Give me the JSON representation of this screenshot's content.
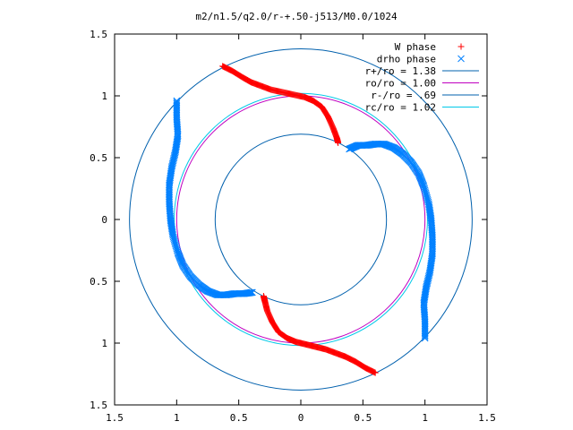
{
  "chart_data": {
    "type": "scatter",
    "title": "m2/n1.5/q2.0/r-+.50-j513/M0.0/1024",
    "xlabel": "",
    "ylabel": "",
    "xlim": [
      -1.5,
      1.5
    ],
    "ylim": [
      -1.5,
      1.5
    ],
    "x_tick_labels": [
      "1.5",
      "1",
      "0.5",
      "0",
      "0.5",
      "1",
      "1.5"
    ],
    "x_tick_values": [
      -1.5,
      -1.0,
      -0.5,
      0.0,
      0.5,
      1.0,
      1.5
    ],
    "y_tick_labels": [
      "1.5",
      "1",
      "0.5",
      "0",
      "0.5",
      "1",
      "1.5"
    ],
    "y_tick_values": [
      1.5,
      1.0,
      0.5,
      0.0,
      -0.5,
      -1.0,
      -1.5
    ],
    "grid": false,
    "legend_position": "top-right",
    "series": [
      {
        "name": "W phase",
        "marker": "+",
        "color": "#ff0000",
        "segments": [
          [
            [
              -0.63,
              1.24
            ],
            [
              -0.55,
              1.2
            ],
            [
              -0.47,
              1.15
            ],
            [
              -0.4,
              1.11
            ],
            [
              -0.32,
              1.08
            ],
            [
              -0.24,
              1.05
            ],
            [
              -0.15,
              1.03
            ],
            [
              -0.06,
              1.01
            ],
            [
              0.03,
              0.99
            ],
            [
              0.1,
              0.96
            ],
            [
              0.17,
              0.91
            ],
            [
              0.22,
              0.83
            ],
            [
              0.26,
              0.74
            ],
            [
              0.29,
              0.66
            ],
            [
              0.3,
              0.62
            ]
          ],
          [
            [
              0.6,
              -1.24
            ],
            [
              0.52,
              -1.2
            ],
            [
              0.44,
              -1.15
            ],
            [
              0.36,
              -1.11
            ],
            [
              0.28,
              -1.08
            ],
            [
              0.2,
              -1.05
            ],
            [
              0.12,
              -1.03
            ],
            [
              0.04,
              -1.01
            ],
            [
              -0.04,
              -0.99
            ],
            [
              -0.11,
              -0.96
            ],
            [
              -0.18,
              -0.91
            ],
            [
              -0.23,
              -0.83
            ],
            [
              -0.27,
              -0.74
            ],
            [
              -0.29,
              -0.66
            ],
            [
              -0.3,
              -0.62
            ]
          ]
        ]
      },
      {
        "name": "drho phase",
        "marker": "x",
        "color": "#0080ff",
        "segments": [
          [
            [
              -1.0,
              0.96
            ],
            [
              -1.0,
              0.82
            ],
            [
              -0.99,
              0.68
            ],
            [
              -1.01,
              0.55
            ],
            [
              -1.04,
              0.42
            ],
            [
              -1.06,
              0.28
            ],
            [
              -1.06,
              0.14
            ],
            [
              -1.05,
              0.0
            ],
            [
              -1.03,
              -0.13
            ],
            [
              -0.99,
              -0.27
            ],
            [
              -0.95,
              -0.37
            ],
            [
              -0.89,
              -0.46
            ],
            [
              -0.82,
              -0.53
            ],
            [
              -0.75,
              -0.58
            ],
            [
              -0.67,
              -0.61
            ],
            [
              -0.6,
              -0.61
            ],
            [
              -0.53,
              -0.6
            ],
            [
              -0.46,
              -0.6
            ],
            [
              -0.39,
              -0.59
            ]
          ],
          [
            [
              1.0,
              -0.96
            ],
            [
              1.0,
              -0.82
            ],
            [
              0.99,
              -0.68
            ],
            [
              1.01,
              -0.55
            ],
            [
              1.04,
              -0.42
            ],
            [
              1.06,
              -0.28
            ],
            [
              1.06,
              -0.14
            ],
            [
              1.05,
              0.0
            ],
            [
              1.03,
              0.13
            ],
            [
              0.99,
              0.27
            ],
            [
              0.95,
              0.37
            ],
            [
              0.89,
              0.46
            ],
            [
              0.82,
              0.53
            ],
            [
              0.75,
              0.58
            ],
            [
              0.67,
              0.61
            ],
            [
              0.6,
              0.61
            ],
            [
              0.53,
              0.6
            ],
            [
              0.46,
              0.6
            ],
            [
              0.39,
              0.57
            ]
          ]
        ]
      },
      {
        "name": "r+/ro = 1.38",
        "type": "circle",
        "radius": 1.38,
        "color": "#0060ad"
      },
      {
        "name": "ro/ro = 1.00",
        "type": "circle",
        "radius": 1.0,
        "color": "#c000c0"
      },
      {
        "name": "r-/ro = .69",
        "type": "circle",
        "radius": 0.69,
        "color": "#0060ad"
      },
      {
        "name": "rc/ro = 1.02",
        "type": "circle",
        "radius": 1.02,
        "color": "#00c8e8"
      }
    ]
  }
}
